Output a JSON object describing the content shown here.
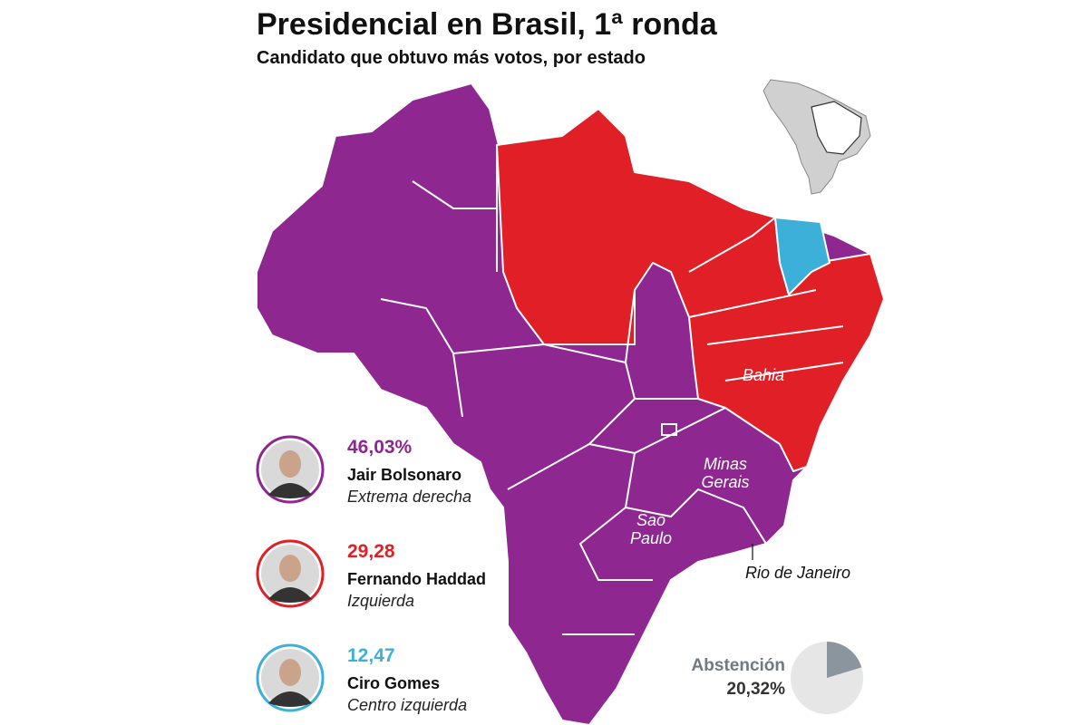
{
  "title": "Presidencial en Brasil, 1ª ronda",
  "subtitle": "Candidato que obtuvo más votos, por estado",
  "map_labels": {
    "bahia": "Bahia",
    "minas_gerais": [
      "Minas",
      "Gerais"
    ],
    "sao_paulo": [
      "Sao",
      "Paulo"
    ],
    "rio_de_janeiro": "Rio de Janeiro"
  },
  "candidates": [
    {
      "percent": "46,03%",
      "name": "Jair Bolsonaro",
      "party": "Extrema derecha",
      "color": "#8e278f"
    },
    {
      "percent": "29,28",
      "name": "Fernando Haddad",
      "party": "Izquierda",
      "color": "#e01f26"
    },
    {
      "percent": "12,47",
      "name": "Ciro Gomes",
      "party": "Centro izquierda",
      "color": "#3cb0d8"
    }
  ],
  "abstention": {
    "label": "Abstención",
    "value_label": "20,32%",
    "value": 20.32
  }
}
